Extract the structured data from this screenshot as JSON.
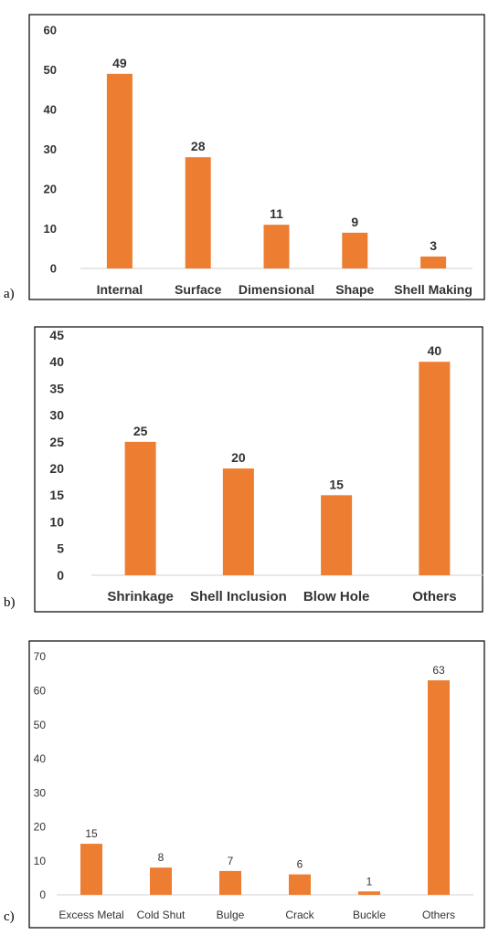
{
  "colors": {
    "bar": "#ED7D31",
    "axis": "#D0D0D0",
    "text": "#333333"
  },
  "chart_data": [
    {
      "type": "bar",
      "panel_label": "a)",
      "categories": [
        "Internal",
        "Surface",
        "Dimensional",
        "Shape",
        "Shell Making"
      ],
      "values": [
        49,
        28,
        11,
        9,
        3
      ],
      "ylim": [
        0,
        60
      ],
      "yticks": [
        0,
        10,
        20,
        30,
        40,
        50,
        60
      ],
      "grid": false,
      "legend": "none"
    },
    {
      "type": "bar",
      "panel_label": "b)",
      "categories": [
        "Shrinkage",
        "Shell Inclusion",
        "Blow Hole",
        "Others"
      ],
      "values": [
        25,
        20,
        15,
        40
      ],
      "ylim": [
        0,
        45
      ],
      "yticks": [
        0,
        5,
        10,
        15,
        20,
        25,
        30,
        35,
        40,
        45
      ],
      "grid": false,
      "legend": "none"
    },
    {
      "type": "bar",
      "panel_label": "c)",
      "categories": [
        "Excess Metal",
        "Cold Shut",
        "Bulge",
        "Crack",
        "Buckle",
        "Others"
      ],
      "values": [
        15,
        8,
        7,
        6,
        1,
        63
      ],
      "ylim": [
        0,
        70
      ],
      "yticks": [
        0,
        10,
        20,
        30,
        40,
        50,
        60,
        70
      ],
      "grid": false,
      "legend": "none"
    }
  ]
}
